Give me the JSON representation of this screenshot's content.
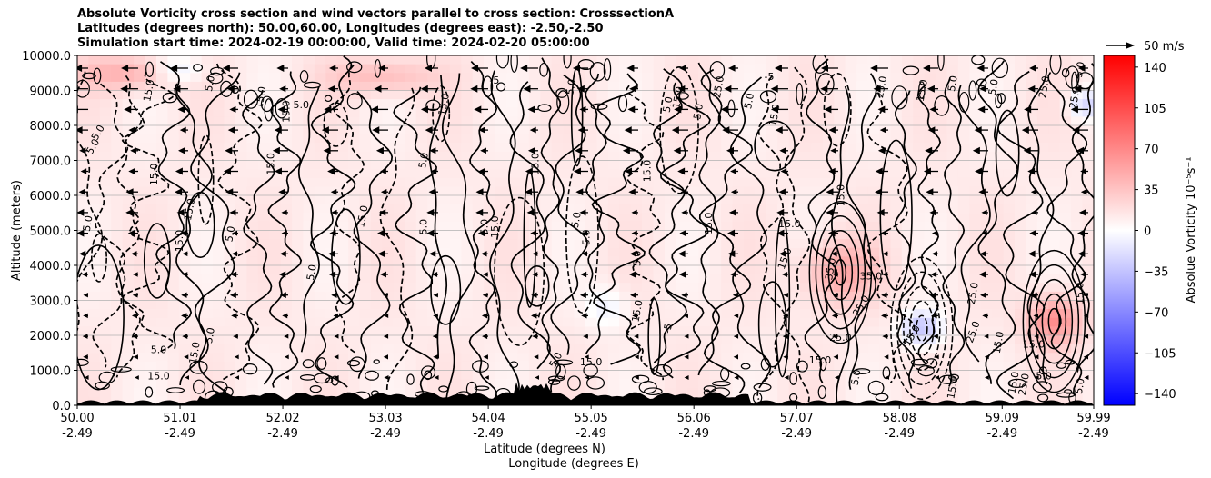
{
  "title": {
    "line1": "Absolute Vorticity cross section and wind vectors parallel to cross section: CrosssectionA",
    "line2": "Latitudes (degrees north): 50.00,60.00, Longitudes (degrees east): -2.50,-2.50",
    "line3": "Simulation start time: 2024-02-19 00:00:00, Valid time: 2024-02-20 05:00:00"
  },
  "quiver_key": {
    "label": "50 m/s"
  },
  "chart_data": {
    "type": "heatmap",
    "xlabel_lat": "Latitude (degrees N)",
    "xlabel_lon": "Longitude (degrees E)",
    "ylabel": "Altitude (meters)",
    "ylim": [
      0,
      10000
    ],
    "xlim": [
      50.0,
      59.99
    ],
    "x_ticks": [
      {
        "lat": "50.00",
        "lon": "-2.49",
        "value": 50.0
      },
      {
        "lat": "51.01",
        "lon": "-2.49",
        "value": 51.01
      },
      {
        "lat": "52.02",
        "lon": "-2.49",
        "value": 52.02
      },
      {
        "lat": "53.03",
        "lon": "-2.49",
        "value": 53.03
      },
      {
        "lat": "54.04",
        "lon": "-2.49",
        "value": 54.04
      },
      {
        "lat": "55.05",
        "lon": "-2.49",
        "value": 55.05
      },
      {
        "lat": "56.06",
        "lon": "-2.49",
        "value": 56.06
      },
      {
        "lat": "57.07",
        "lon": "-2.49",
        "value": 57.07
      },
      {
        "lat": "58.08",
        "lon": "-2.49",
        "value": 58.08
      },
      {
        "lat": "59.09",
        "lon": "-2.49",
        "value": 59.09
      },
      {
        "lat": "59.99",
        "lon": "-2.49",
        "value": 59.99
      }
    ],
    "y_ticks": [
      {
        "label": "0.0",
        "value": 0
      },
      {
        "label": "1000.0",
        "value": 1000
      },
      {
        "label": "2000.0",
        "value": 2000
      },
      {
        "label": "3000.0",
        "value": 3000
      },
      {
        "label": "4000.0",
        "value": 4000
      },
      {
        "label": "5000.0",
        "value": 5000
      },
      {
        "label": "6000.0",
        "value": 6000
      },
      {
        "label": "7000.0",
        "value": 7000
      },
      {
        "label": "8000.0",
        "value": 8000
      },
      {
        "label": "9000.0",
        "value": 9000
      },
      {
        "label": "10000.0",
        "value": 10000
      }
    ],
    "grid": "horizontal",
    "colorbar": {
      "label": "Absolue Vorticity 10⁻⁵s⁻¹",
      "range": [
        -150,
        150
      ],
      "colormap": "bwr",
      "ticks": [
        {
          "label": "140",
          "value": 140
        },
        {
          "label": "105",
          "value": 105
        },
        {
          "label": "70",
          "value": 70
        },
        {
          "label": "35",
          "value": 35
        },
        {
          "label": "0",
          "value": 0
        },
        {
          "label": "−35",
          "value": -35
        },
        {
          "label": "−70",
          "value": -70
        },
        {
          "label": "−105",
          "value": -105
        },
        {
          "label": "−140",
          "value": -140
        }
      ]
    },
    "colors": {
      "max": "#ff0000",
      "zero": "#ffffff",
      "min": "#0000ff"
    },
    "contour_labels": [
      {
        "text": "5.0",
        "lat": 50.1,
        "alt": 5200,
        "angle": -80
      },
      {
        "text": "5.0",
        "lat": 50.15,
        "alt": 7400,
        "angle": -60
      },
      {
        "text": "5.0",
        "lat": 50.8,
        "alt": 1600,
        "angle": 0
      },
      {
        "text": "15.0",
        "lat": 50.8,
        "alt": 850,
        "angle": 0
      },
      {
        "text": "15.0",
        "lat": 50.75,
        "alt": 6600,
        "angle": -90
      },
      {
        "text": "15.0",
        "lat": 51.0,
        "alt": 4700,
        "angle": -90
      },
      {
        "text": "15.0",
        "lat": 51.1,
        "alt": 5600,
        "angle": -80
      },
      {
        "text": "5.0",
        "lat": 51.5,
        "alt": 4900,
        "angle": -80
      },
      {
        "text": "15.0",
        "lat": 51.15,
        "alt": 1500,
        "angle": -80
      },
      {
        "text": "5.0",
        "lat": 51.3,
        "alt": 2000,
        "angle": -80
      },
      {
        "text": "15.0",
        "lat": 51.9,
        "alt": 6900,
        "angle": -90
      },
      {
        "text": "5.0",
        "lat": 52.3,
        "alt": 3800,
        "angle": -80
      },
      {
        "text": "15.0",
        "lat": 52.8,
        "alt": 5400,
        "angle": -80
      },
      {
        "text": "5.0",
        "lat": 53.4,
        "alt": 5100,
        "angle": -90
      },
      {
        "text": "5.0",
        "lat": 53.4,
        "alt": 7000,
        "angle": -80
      },
      {
        "text": "15.0",
        "lat": 52.05,
        "alt": 8400,
        "angle": -90
      },
      {
        "text": "5.0",
        "lat": 54.0,
        "alt": 5100,
        "angle": -90
      },
      {
        "text": "15.0",
        "lat": 54.1,
        "alt": 5100,
        "angle": -90
      },
      {
        "text": "5.0",
        "lat": 54.9,
        "alt": 5300,
        "angle": -80
      },
      {
        "text": "5.0",
        "lat": 55.0,
        "alt": 4800,
        "angle": -90
      },
      {
        "text": "15.0",
        "lat": 54.5,
        "alt": 6900,
        "angle": -90
      },
      {
        "text": "15.0",
        "lat": 55.05,
        "alt": 1250,
        "angle": 0
      },
      {
        "text": "15.0",
        "lat": 55.5,
        "alt": 2700,
        "angle": -80
      },
      {
        "text": "5.0",
        "lat": 55.5,
        "alt": 4200,
        "angle": -90
      },
      {
        "text": "15.0",
        "lat": 55.6,
        "alt": 6700,
        "angle": -90
      },
      {
        "text": "15.0",
        "lat": 56.2,
        "alt": 5200,
        "angle": -90
      },
      {
        "text": "15.0",
        "lat": 57.0,
        "alt": 5200,
        "angle": 0
      },
      {
        "text": "15.0",
        "lat": 56.95,
        "alt": 4200,
        "angle": -70
      },
      {
        "text": "15.0",
        "lat": 57.5,
        "alt": 6000,
        "angle": -90
      },
      {
        "text": "35.0",
        "lat": 57.4,
        "alt": 3900,
        "angle": -80
      },
      {
        "text": "35.0",
        "lat": 57.8,
        "alt": 3700,
        "angle": 0
      },
      {
        "text": "25.0",
        "lat": 57.5,
        "alt": 1950,
        "angle": 0
      },
      {
        "text": "25.0",
        "lat": 57.7,
        "alt": 2850,
        "angle": -60
      },
      {
        "text": "15.0",
        "lat": 58.2,
        "alt": 2000,
        "angle": -60
      },
      {
        "text": "15.0",
        "lat": 57.3,
        "alt": 1300,
        "angle": 0
      },
      {
        "text": "25.0",
        "lat": 58.8,
        "alt": 3200,
        "angle": -80
      },
      {
        "text": "25.0",
        "lat": 58.8,
        "alt": 2100,
        "angle": -70
      },
      {
        "text": "15.0",
        "lat": 59.05,
        "alt": 1800,
        "angle": -80
      },
      {
        "text": "15.0",
        "lat": 59.4,
        "alt": 1750,
        "angle": 0
      },
      {
        "text": "25.0",
        "lat": 59.5,
        "alt": 9100,
        "angle": -80
      },
      {
        "text": "5.0",
        "lat": 59.0,
        "alt": 9100,
        "angle": -80
      },
      {
        "text": "5.0",
        "lat": 59.85,
        "alt": 9600,
        "angle": -80
      },
      {
        "text": "15.0",
        "lat": 59.85,
        "alt": 3200,
        "angle": -90
      },
      {
        "text": "5.0",
        "lat": 59.5,
        "alt": 850,
        "angle": 0
      },
      {
        "text": "5.0",
        "lat": 59.85,
        "alt": 550,
        "angle": -80
      },
      {
        "text": "15.0",
        "lat": 59.2,
        "alt": 650,
        "angle": -80
      },
      {
        "text": "5.0",
        "lat": 56.1,
        "alt": 8400,
        "angle": -80
      },
      {
        "text": "5.0",
        "lat": 56.6,
        "alt": 8700,
        "angle": -80
      },
      {
        "text": "15.0",
        "lat": 56.85,
        "alt": 8300,
        "angle": -80
      },
      {
        "text": "5.0",
        "lat": 55.8,
        "alt": 8600,
        "angle": -80
      },
      {
        "text": "15.0",
        "lat": 55.9,
        "alt": 8800,
        "angle": -80
      },
      {
        "text": "25.0",
        "lat": 56.3,
        "alt": 9100,
        "angle": -80
      },
      {
        "text": "25.0",
        "lat": 57.9,
        "alt": 9100,
        "angle": -80
      },
      {
        "text": "15.0",
        "lat": 58.3,
        "alt": 9000,
        "angle": -80
      },
      {
        "text": "5.0",
        "lat": 58.6,
        "alt": 9200,
        "angle": -80
      },
      {
        "text": "25.0",
        "lat": 59.8,
        "alt": 8800,
        "angle": -80
      },
      {
        "text": "15.0",
        "lat": 53.6,
        "alt": 8600,
        "angle": -80
      },
      {
        "text": "15.0",
        "lat": 51.8,
        "alt": 8800,
        "angle": -80
      },
      {
        "text": "5.0",
        "lat": 52.2,
        "alt": 8600,
        "angle": 0
      },
      {
        "text": "5.0",
        "lat": 50.2,
        "alt": 7800,
        "angle": -60
      },
      {
        "text": "15.0",
        "lat": 50.7,
        "alt": 9000,
        "angle": -80
      },
      {
        "text": "5.0",
        "lat": 51.3,
        "alt": 9200,
        "angle": -80
      },
      {
        "text": "5.0",
        "lat": 54.85,
        "alt": 9100,
        "angle": -80
      },
      {
        "text": "-5",
        "lat": 54.1,
        "alt": 9300,
        "angle": 0
      },
      {
        "text": "-5",
        "lat": 56.8,
        "alt": 9400,
        "angle": 0
      },
      {
        "text": "5.0",
        "lat": 57.65,
        "alt": 800,
        "angle": -80
      },
      {
        "text": "15.0",
        "lat": 58.6,
        "alt": 500,
        "angle": -80
      },
      {
        "text": "25.0",
        "lat": 59.3,
        "alt": 600,
        "angle": -80
      },
      {
        "text": "5.0",
        "lat": 54.7,
        "alt": 1300,
        "angle": -60
      },
      {
        "text": "-5",
        "lat": 55.8,
        "alt": 2200,
        "angle": -80
      }
    ]
  }
}
